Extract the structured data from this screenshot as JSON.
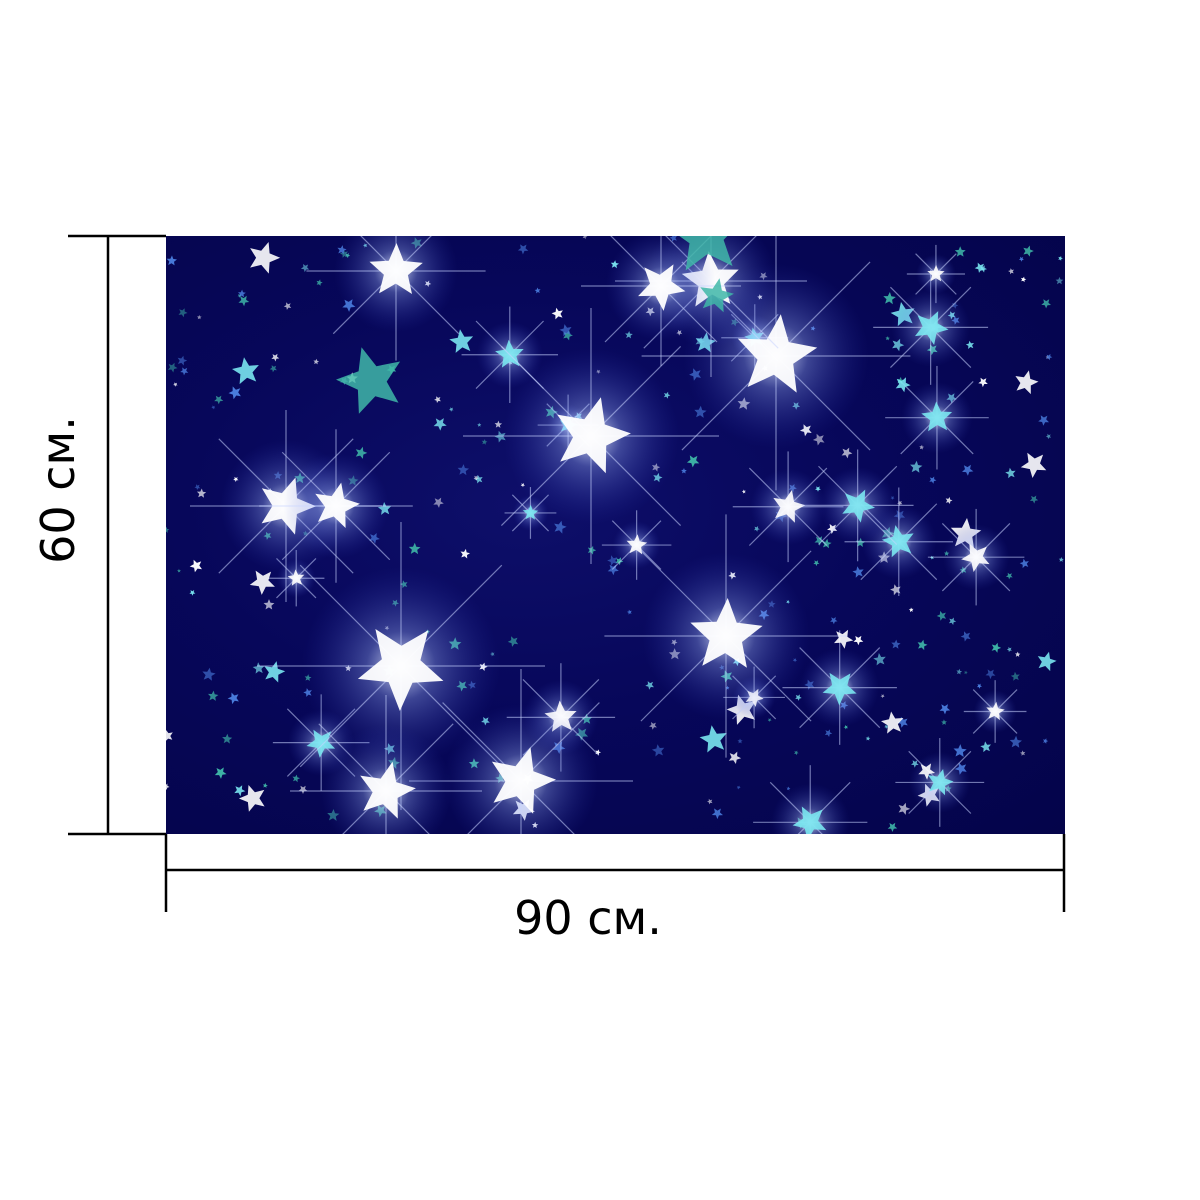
{
  "product": {
    "image_name": "starry-night-pattern",
    "palette": {
      "background": "#07075a",
      "star_white": "#ffffff",
      "star_cyan": "#7ae6f0",
      "star_teal": "#3fb7a8",
      "star_blue": "#4b7fe0"
    }
  },
  "dimensions": {
    "height_label": "60 см.",
    "width_label": "90 см."
  }
}
